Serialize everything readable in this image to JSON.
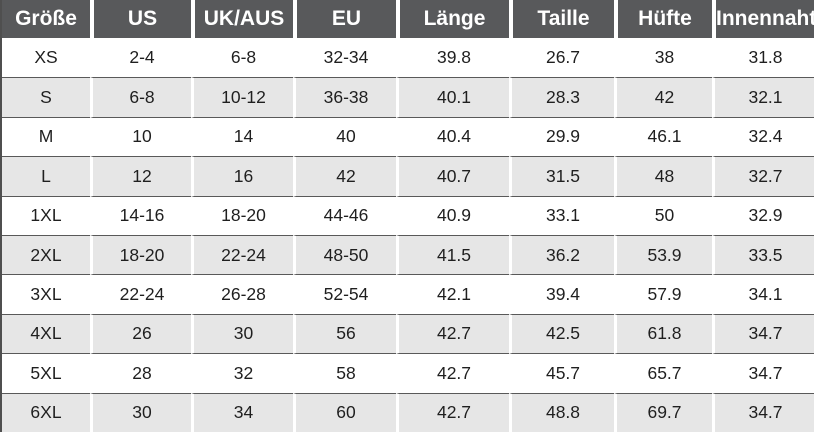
{
  "page": {
    "title": "Size Chart",
    "background_color": "#ffffff"
  },
  "colors": {
    "header_background": "#58595b",
    "header_text": "#ffffff",
    "stripe_row_background": "#e6e6e6",
    "plain_row_background": "#ffffff",
    "body_text": "#1f1f1f",
    "grid_line": "#595959",
    "outer_border": "#4f4f4f",
    "column_divider": "#ffffff"
  },
  "table": {
    "columns": [
      "Größe",
      "US",
      "UK/AUS",
      "EU",
      "Länge",
      "Taille",
      "Hüfte",
      "Innennaht"
    ],
    "rows": [
      [
        "XS",
        "2-4",
        "6-8",
        "32-34",
        "39.8",
        "26.7",
        "38",
        "31.8"
      ],
      [
        "S",
        "6-8",
        "10-12",
        "36-38",
        "40.1",
        "28.3",
        "42",
        "32.1"
      ],
      [
        "M",
        "10",
        "14",
        "40",
        "40.4",
        "29.9",
        "46.1",
        "32.4"
      ],
      [
        "L",
        "12",
        "16",
        "42",
        "40.7",
        "31.5",
        "48",
        "32.7"
      ],
      [
        "1XL",
        "14-16",
        "18-20",
        "44-46",
        "40.9",
        "33.1",
        "50",
        "32.9"
      ],
      [
        "2XL",
        "18-20",
        "22-24",
        "48-50",
        "41.5",
        "36.2",
        "53.9",
        "33.5"
      ],
      [
        "3XL",
        "22-24",
        "26-28",
        "52-54",
        "42.1",
        "39.4",
        "57.9",
        "34.1"
      ],
      [
        "4XL",
        "26",
        "30",
        "56",
        "42.7",
        "42.5",
        "61.8",
        "34.7"
      ],
      [
        "5XL",
        "28",
        "32",
        "58",
        "42.7",
        "45.7",
        "65.7",
        "34.7"
      ],
      [
        "6XL",
        "30",
        "34",
        "60",
        "42.7",
        "48.8",
        "69.7",
        "34.7"
      ]
    ]
  }
}
